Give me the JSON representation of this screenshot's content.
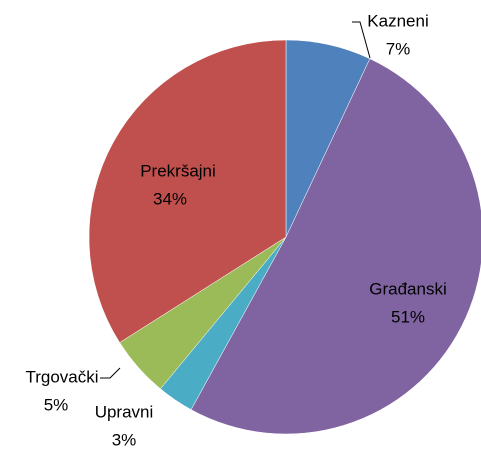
{
  "chart_data": {
    "type": "pie",
    "categories": [
      "Kazneni",
      "Građanski",
      "Upravni",
      "Trgovački",
      "Prekršajni"
    ],
    "values": [
      7,
      51,
      3,
      5,
      34
    ],
    "value_labels": [
      "7%",
      "51%",
      "3%",
      "5%",
      "34%"
    ],
    "colors": [
      "#4f81bd",
      "#8064a2",
      "#4bacc6",
      "#9bbb59",
      "#c0504d"
    ]
  }
}
